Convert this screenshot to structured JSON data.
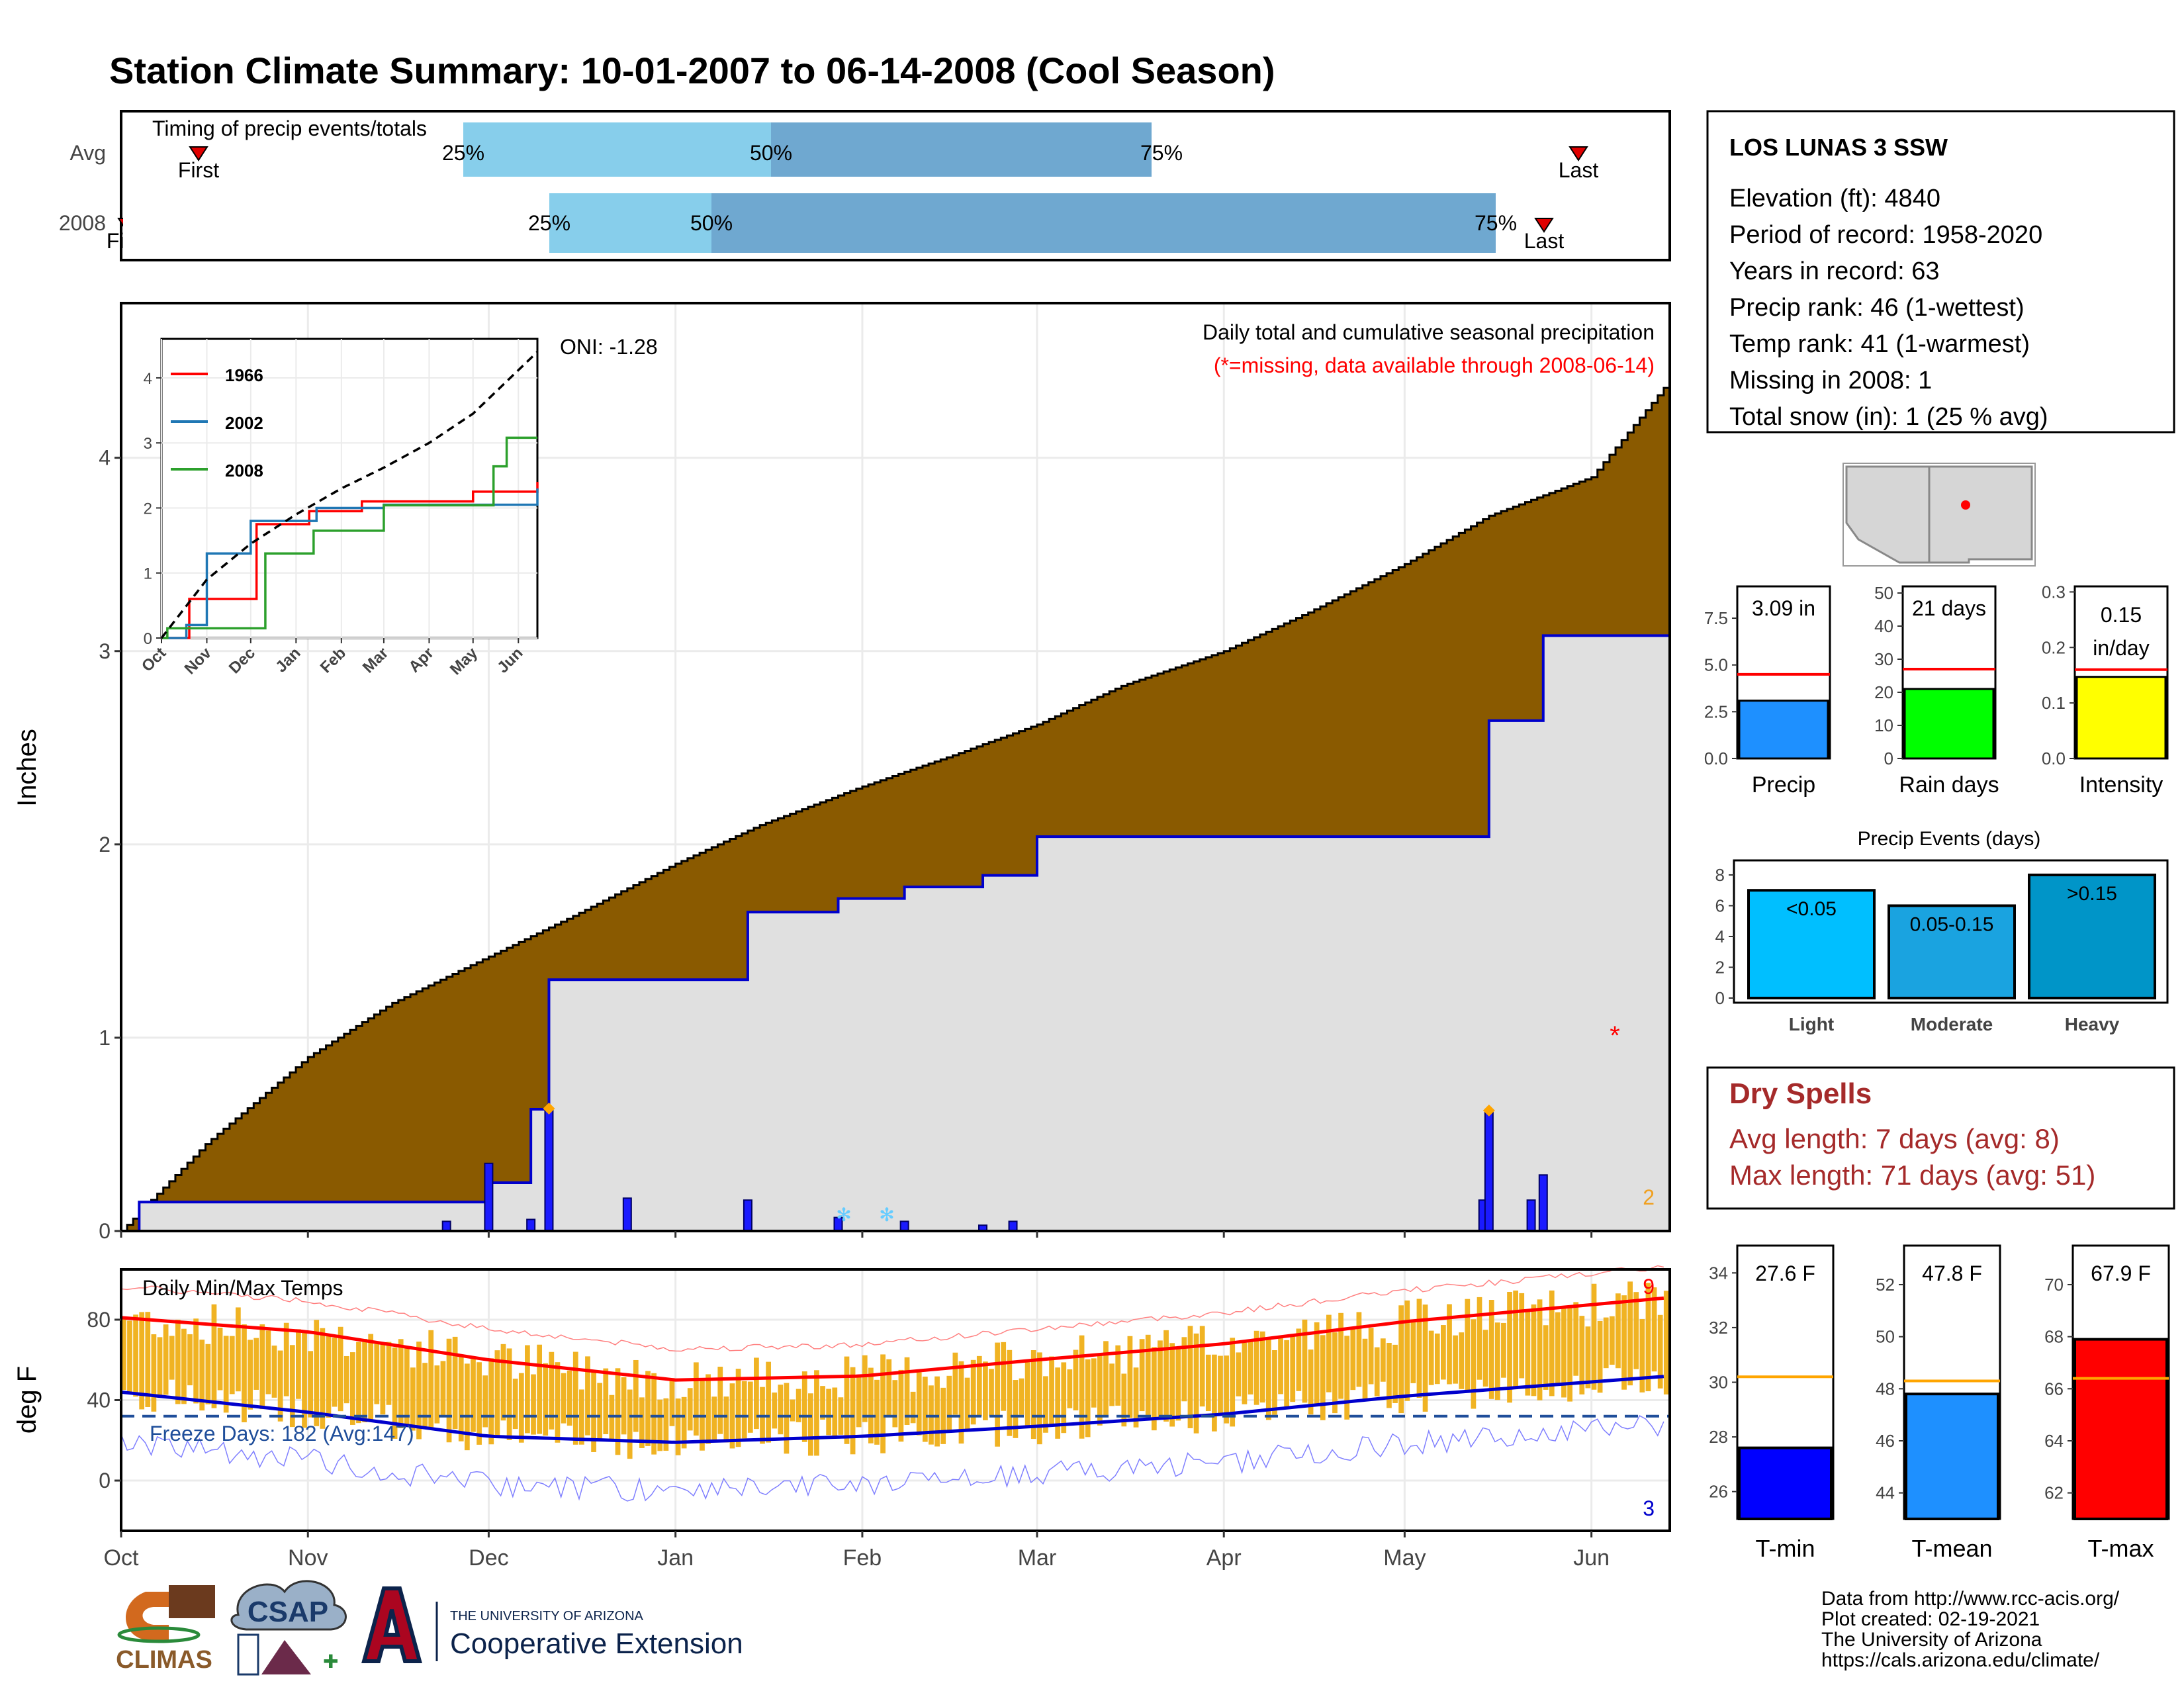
{
  "title": "Station Climate Summary: 10-01-2007 to 06-14-2008 (Cool Season)",
  "colors": {
    "title": "#233f8a",
    "cumulative_avg": "#8a5a00",
    "cumulative_obs": "#0000cc",
    "daily_bar": "#1a1aff",
    "temp_bar": "#f0b323",
    "max_line": "#ff0000",
    "min_line": "#0000cc",
    "light_blue": "#87ceeb",
    "mid_blue": "#6fa8d0",
    "dry_spells": "#a52a2a"
  },
  "x_months": [
    "Oct",
    "Nov",
    "Dec",
    "Jan",
    "Feb",
    "Mar",
    "Apr",
    "May",
    "Jun"
  ],
  "timing": {
    "title": "Timing of precip events/totals",
    "rows": [
      {
        "label": "Avg",
        "first_label": "First",
        "last_label": "Last",
        "p25": "25%",
        "p50": "50%",
        "p75": "75%"
      },
      {
        "label": "2008",
        "first_label": "First",
        "last_label": "Last",
        "p25": "25%",
        "p50": "50%",
        "p75": "75%"
      }
    ]
  },
  "main": {
    "ylabel": "Inches",
    "yticks": [
      "0",
      "1",
      "2",
      "3",
      "4"
    ],
    "title": "Daily total and cumulative seasonal precipitation",
    "subtitle": "(*=missing, data available through 2008-06-14)",
    "oni": "ONI: -1.28",
    "corner_count": "2"
  },
  "inset": {
    "yticks": [
      "0",
      "1",
      "2",
      "3",
      "4"
    ],
    "xticks": [
      "Oct",
      "Nov",
      "Dec",
      "Jan",
      "Feb",
      "Mar",
      "Apr",
      "May",
      "Jun"
    ],
    "legend": [
      {
        "name": "1966",
        "color": "#ff0000"
      },
      {
        "name": "2002",
        "color": "#1f77b4"
      },
      {
        "name": "2008",
        "color": "#2ca02c"
      }
    ]
  },
  "temps": {
    "title": "Daily Min/Max Temps",
    "ylabel": "deg F",
    "yticks": [
      "0",
      "40",
      "80"
    ],
    "freeze_label": "Freeze Days: 182 (Avg:147)",
    "record_high_count": "9",
    "record_low_count": "3"
  },
  "station": {
    "name": "LOS LUNAS 3 SSW",
    "lines": [
      "Elevation (ft): 4840",
      "Period of record: 1958-2020",
      "Years in record: 63",
      "Precip rank: 46 (1-wettest)",
      "Temp rank: 41 (1-warmest)",
      "Missing in 2008: 1",
      "Total snow (in): 1 (25 % avg)"
    ]
  },
  "mini_precip": [
    {
      "label": "Precip",
      "value_text": "3.09 in",
      "value": 3.09,
      "avg": 4.5,
      "ymax": 9.2,
      "ticks": [
        "0.0",
        "2.5",
        "5.0",
        "7.5"
      ],
      "tickvals": [
        0,
        2.5,
        5,
        7.5
      ],
      "color": "#1e90ff"
    },
    {
      "label": "Rain days",
      "value_text": "21 days",
      "value": 21,
      "avg": 27,
      "ymax": 52,
      "ticks": [
        "0",
        "10",
        "20",
        "30",
        "40",
        "50"
      ],
      "tickvals": [
        0,
        10,
        20,
        30,
        40,
        50
      ],
      "color": "#00ff00"
    },
    {
      "label": "Intensity",
      "value_text_1": "0.15",
      "value_text_2": "in/day",
      "value": 0.147,
      "avg": 0.16,
      "ymax": 0.31,
      "ticks": [
        "0.0",
        "0.1",
        "0.2",
        "0.3"
      ],
      "tickvals": [
        0,
        0.1,
        0.2,
        0.3
      ],
      "color": "#ffff00"
    }
  ],
  "events": {
    "title": "Precip Events (days)",
    "yticks": [
      "0",
      "2",
      "4",
      "6",
      "8"
    ],
    "bars": [
      {
        "category": "Light",
        "label": "<0.05",
        "value": 7,
        "color": "#00bfff"
      },
      {
        "category": "Moderate",
        "label": "0.05-0.15",
        "value": 6,
        "color": "#1aa3e0"
      },
      {
        "category": "Heavy",
        "label": ">0.15",
        "value": 8,
        "color": "#0095c8"
      }
    ]
  },
  "dry_spells": {
    "title": "Dry Spells",
    "lines": [
      "Avg length: 7 days (avg: 8)",
      "Max length: 71 days (avg: 51)"
    ]
  },
  "temp_bars": [
    {
      "label": "T-min",
      "value_text": "27.6 F",
      "value": 27.6,
      "avg": 30.2,
      "ymin": 25,
      "ymax": 35,
      "ticks": [
        "26",
        "28",
        "30",
        "32",
        "34"
      ],
      "tickvals": [
        26,
        28,
        30,
        32,
        34
      ],
      "color": "#0000ff"
    },
    {
      "label": "T-mean",
      "value_text": "47.8 F",
      "value": 47.8,
      "avg": 48.3,
      "ymin": 43,
      "ymax": 53.5,
      "ticks": [
        "44",
        "46",
        "48",
        "50",
        "52"
      ],
      "tickvals": [
        44,
        46,
        48,
        50,
        52
      ],
      "color": "#1e90ff"
    },
    {
      "label": "T-max",
      "value_text": "67.9 F",
      "value": 67.9,
      "avg": 66.4,
      "ymin": 61,
      "ymax": 71.5,
      "ticks": [
        "62",
        "64",
        "66",
        "68",
        "70"
      ],
      "tickvals": [
        62,
        64,
        66,
        68,
        70
      ],
      "color": "#ff0000"
    }
  ],
  "footer": {
    "lines": [
      "Data from http://www.rcc-acis.org/",
      "Plot created: 02-19-2021",
      "The University of Arizona",
      "https://cals.arizona.edu/climate/"
    ],
    "climas": "CLIMAS",
    "csap": "CSAP",
    "ua_small": "THE UNIVERSITY OF ARIZONA",
    "coop": "Cooperative Extension"
  },
  "chart_data": [
    {
      "type": "area",
      "title": "Daily total and cumulative seasonal precipitation",
      "ylabel": "Inches",
      "ylim": [
        0,
        4.8
      ],
      "x_range": [
        "2007-10-01",
        "2008-06-14"
      ],
      "series": [
        {
          "name": "Average cumulative",
          "x": [
            "2007-10-01",
            "2007-10-15",
            "2007-11-01",
            "2007-11-15",
            "2007-12-01",
            "2007-12-15",
            "2008-01-01",
            "2008-01-15",
            "2008-02-01",
            "2008-02-15",
            "2008-03-01",
            "2008-03-15",
            "2008-04-01",
            "2008-04-15",
            "2008-05-01",
            "2008-05-15",
            "2008-06-01",
            "2008-06-14"
          ],
          "y": [
            0.0,
            0.45,
            0.9,
            1.18,
            1.42,
            1.63,
            1.9,
            2.1,
            2.3,
            2.45,
            2.62,
            2.82,
            3.0,
            3.2,
            3.45,
            3.7,
            3.9,
            4.4
          ]
        },
        {
          "name": "2008 cumulative",
          "x": [
            "2007-10-01",
            "2007-10-04",
            "2007-11-01",
            "2007-11-24",
            "2007-12-01",
            "2007-12-08",
            "2007-12-11",
            "2008-01-01",
            "2008-01-13",
            "2008-01-28",
            "2008-02-08",
            "2008-02-21",
            "2008-03-01",
            "2008-05-01",
            "2008-05-15",
            "2008-05-24",
            "2008-06-14"
          ],
          "y": [
            0.0,
            0.15,
            0.15,
            0.15,
            0.25,
            0.63,
            1.3,
            1.3,
            1.65,
            1.72,
            1.78,
            1.84,
            2.04,
            2.04,
            2.64,
            3.08,
            3.08
          ]
        },
        {
          "name": "2008 daily",
          "x": [
            "2007-11-24",
            "2007-12-01",
            "2007-12-08",
            "2007-12-11",
            "2007-12-24",
            "2008-01-13",
            "2008-01-28",
            "2008-02-08",
            "2008-02-21",
            "2008-02-26",
            "2008-05-14",
            "2008-05-15",
            "2008-05-22",
            "2008-05-24"
          ],
          "y": [
            0.05,
            0.35,
            0.06,
            0.63,
            0.17,
            0.16,
            0.07,
            0.05,
            0.03,
            0.05,
            0.16,
            0.62,
            0.16,
            0.29
          ]
        }
      ]
    },
    {
      "type": "line",
      "title": "",
      "ylim": [
        0,
        4.6
      ],
      "x_range": [
        "Oct",
        "Jun"
      ],
      "series": [
        {
          "name": "1966",
          "x": [
            "2007-10-01",
            "2007-10-20",
            "2007-11-15",
            "2007-12-05",
            "2008-01-10",
            "2008-02-15",
            "2008-05-01",
            "2008-06-14"
          ],
          "y": [
            0,
            0.6,
            0.6,
            1.75,
            1.95,
            2.1,
            2.25,
            2.4
          ]
        },
        {
          "name": "2002",
          "x": [
            "2007-10-01",
            "2007-10-18",
            "2007-11-01",
            "2007-12-01",
            "2008-01-15",
            "2008-03-01",
            "2008-06-14"
          ],
          "y": [
            0,
            0.2,
            1.3,
            1.8,
            2.0,
            2.05,
            2.3
          ]
        },
        {
          "name": "2008",
          "x": [
            "2007-10-01",
            "2007-10-05",
            "2007-11-24",
            "2007-12-11",
            "2008-01-13",
            "2008-03-01",
            "2008-05-15",
            "2008-05-24",
            "2008-06-14"
          ],
          "y": [
            0,
            0.15,
            0.15,
            1.3,
            1.65,
            2.04,
            2.64,
            3.08,
            3.08
          ]
        },
        {
          "name": "Average",
          "x": [
            "2007-10-01",
            "2007-11-01",
            "2007-12-01",
            "2008-01-01",
            "2008-02-01",
            "2008-03-01",
            "2008-04-01",
            "2008-05-01",
            "2008-06-14"
          ],
          "y": [
            0,
            0.9,
            1.45,
            1.9,
            2.3,
            2.62,
            3.0,
            3.45,
            4.4
          ]
        }
      ]
    },
    {
      "type": "line",
      "title": "Daily Min/Max Temps",
      "ylabel": "deg F",
      "ylim": [
        -25,
        105
      ],
      "x_range": [
        "2007-10-01",
        "2008-06-14"
      ],
      "series": [
        {
          "name": "Avg max",
          "x": [
            "2007-10-01",
            "2007-11-01",
            "2007-12-01",
            "2008-01-01",
            "2008-02-01",
            "2008-03-01",
            "2008-04-01",
            "2008-05-01",
            "2008-06-14"
          ],
          "y": [
            81,
            74,
            60,
            50,
            52,
            60,
            68,
            79,
            91
          ]
        },
        {
          "name": "Avg min",
          "x": [
            "2007-10-01",
            "2007-11-01",
            "2007-12-01",
            "2008-01-01",
            "2008-02-01",
            "2008-03-01",
            "2008-04-01",
            "2008-05-01",
            "2008-06-14"
          ],
          "y": [
            44,
            34,
            22,
            19,
            22,
            27,
            33,
            42,
            52
          ]
        },
        {
          "name": "Freeze threshold",
          "x": [
            "2007-10-01",
            "2008-06-14"
          ],
          "y": [
            32,
            32
          ]
        }
      ]
    },
    {
      "type": "bar",
      "title": "",
      "categories": [
        "Precip",
        "Rain days",
        "Intensity"
      ],
      "values": [
        3.09,
        21,
        0.15
      ],
      "averages": [
        4.5,
        27,
        0.16
      ]
    },
    {
      "type": "bar",
      "title": "Precip Events (days)",
      "categories": [
        "Light",
        "Moderate",
        "Heavy"
      ],
      "values": [
        7,
        6,
        8
      ],
      "ylim": [
        0,
        8.5
      ]
    },
    {
      "type": "bar",
      "title": "",
      "categories": [
        "T-min",
        "T-mean",
        "T-max"
      ],
      "values": [
        27.6,
        47.8,
        67.9
      ],
      "averages": [
        30.2,
        48.3,
        66.4
      ]
    }
  ]
}
